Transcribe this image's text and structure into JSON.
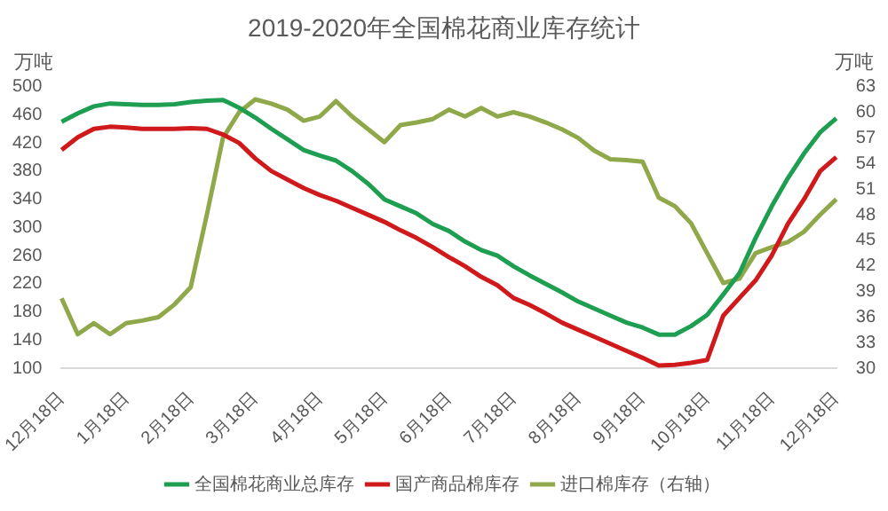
{
  "chart_data": {
    "type": "line",
    "title": "2019-2020年全国棉花商业库存统计",
    "ylabel": "万吨",
    "y2label": "万吨",
    "categories": [
      "12月18日",
      null,
      null,
      null,
      "1月18日",
      null,
      null,
      null,
      "2月18日",
      null,
      null,
      null,
      "3月18日",
      null,
      null,
      null,
      "4月18日",
      null,
      null,
      null,
      "5月18日",
      null,
      null,
      null,
      "6月18日",
      null,
      null,
      null,
      "7月18日",
      null,
      null,
      null,
      "8月18日",
      null,
      null,
      null,
      "9月18日",
      null,
      null,
      null,
      "10月18日",
      null,
      null,
      null,
      "11月18日",
      null,
      null,
      null,
      "12月18日"
    ],
    "series": [
      {
        "name": "全国棉花商业总库存",
        "color": "#1e9e50",
        "values": [
          450,
          462,
          472,
          476,
          475,
          474,
          474,
          475,
          478,
          480,
          481,
          470,
          456,
          440,
          425,
          410,
          402,
          395,
          380,
          362,
          340,
          330,
          320,
          305,
          295,
          280,
          268,
          260,
          245,
          232,
          220,
          208,
          195,
          185,
          175,
          165,
          158,
          148,
          148,
          160,
          176,
          205,
          235,
          285,
          330,
          370,
          405,
          435,
          455
        ]
      },
      {
        "name": "国产商品棉库存",
        "color": "#d0191b",
        "values": [
          410,
          428,
          440,
          443,
          442,
          440,
          440,
          440,
          441,
          440,
          432,
          420,
          398,
          380,
          368,
          356,
          346,
          338,
          328,
          318,
          308,
          296,
          285,
          272,
          258,
          245,
          230,
          218,
          200,
          190,
          178,
          165,
          155,
          145,
          135,
          125,
          115,
          104,
          105,
          108,
          112,
          175,
          200,
          225,
          260,
          305,
          340,
          380,
          400
        ]
      },
      {
        "name": "进口棉库存（右轴）",
        "color": "#8fa84a",
        "axis": "y2",
        "values": [
          38.2,
          34,
          35.3,
          34,
          35.3,
          35.6,
          36,
          37.5,
          39.5,
          48,
          57,
          60,
          61.5,
          61,
          60.3,
          59,
          59.5,
          61.3,
          59.5,
          58,
          56.5,
          58.5,
          58.8,
          59.2,
          60.3,
          59.5,
          60.5,
          59.5,
          60,
          59.5,
          58.8,
          58,
          57,
          55.5,
          54.5,
          54.4,
          54.2,
          50,
          49,
          47,
          43.5,
          40,
          40.5,
          43.5,
          44.2,
          44.8,
          46,
          48,
          49.8
        ]
      }
    ],
    "ylim": [
      100,
      500
    ],
    "yticks": [
      100,
      140,
      180,
      220,
      260,
      300,
      340,
      380,
      420,
      460,
      500
    ],
    "y2lim": [
      30,
      63
    ],
    "y2ticks": [
      30,
      33,
      36,
      39,
      42,
      45,
      48,
      51,
      54,
      57,
      60,
      63
    ],
    "grid": false,
    "legend": "bottom",
    "marker": "none",
    "line_style": "solid"
  }
}
